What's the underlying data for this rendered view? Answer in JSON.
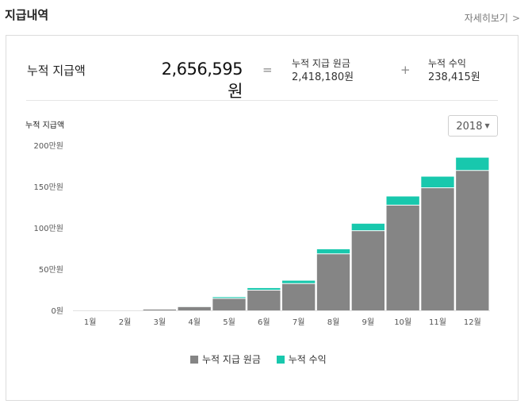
{
  "header": {
    "title": "지급내역",
    "more_label": "자세히보기",
    "more_chevron": ">"
  },
  "summary": {
    "label": "누적 지급액",
    "total": "2,656,595원",
    "equals": "=",
    "plus": "+",
    "principal_label": "누적 지급 원금",
    "principal_value": "2,418,180원",
    "profit_label": "누적 수익",
    "profit_value": "238,415원"
  },
  "year_select": {
    "value": "2018",
    "caret": "▼"
  },
  "colors": {
    "principal": "#858585",
    "profit": "#18c8ad"
  },
  "chart_data": {
    "type": "bar",
    "stacked": true,
    "title": "누적 지급액",
    "categories": [
      "1월",
      "2월",
      "3월",
      "4월",
      "5월",
      "6월",
      "7월",
      "8월",
      "9월",
      "10월",
      "11월",
      "12월"
    ],
    "series": [
      {
        "name": "누적 지급 원금",
        "values": [
          0,
          0,
          1,
          4,
          14,
          24,
          32,
          68,
          96,
          127,
          148,
          169
        ]
      },
      {
        "name": "누적 수익",
        "values": [
          0,
          0,
          0,
          1,
          2,
          3,
          4,
          6,
          9,
          11,
          14,
          16
        ]
      }
    ],
    "yticks": [
      0,
      50,
      100,
      150,
      200
    ],
    "ytick_labels": [
      "0원",
      "50만원",
      "100만원",
      "150만원",
      "200만원"
    ],
    "ylim": [
      0,
      200
    ],
    "grid": false,
    "legend_position": "bottom"
  }
}
